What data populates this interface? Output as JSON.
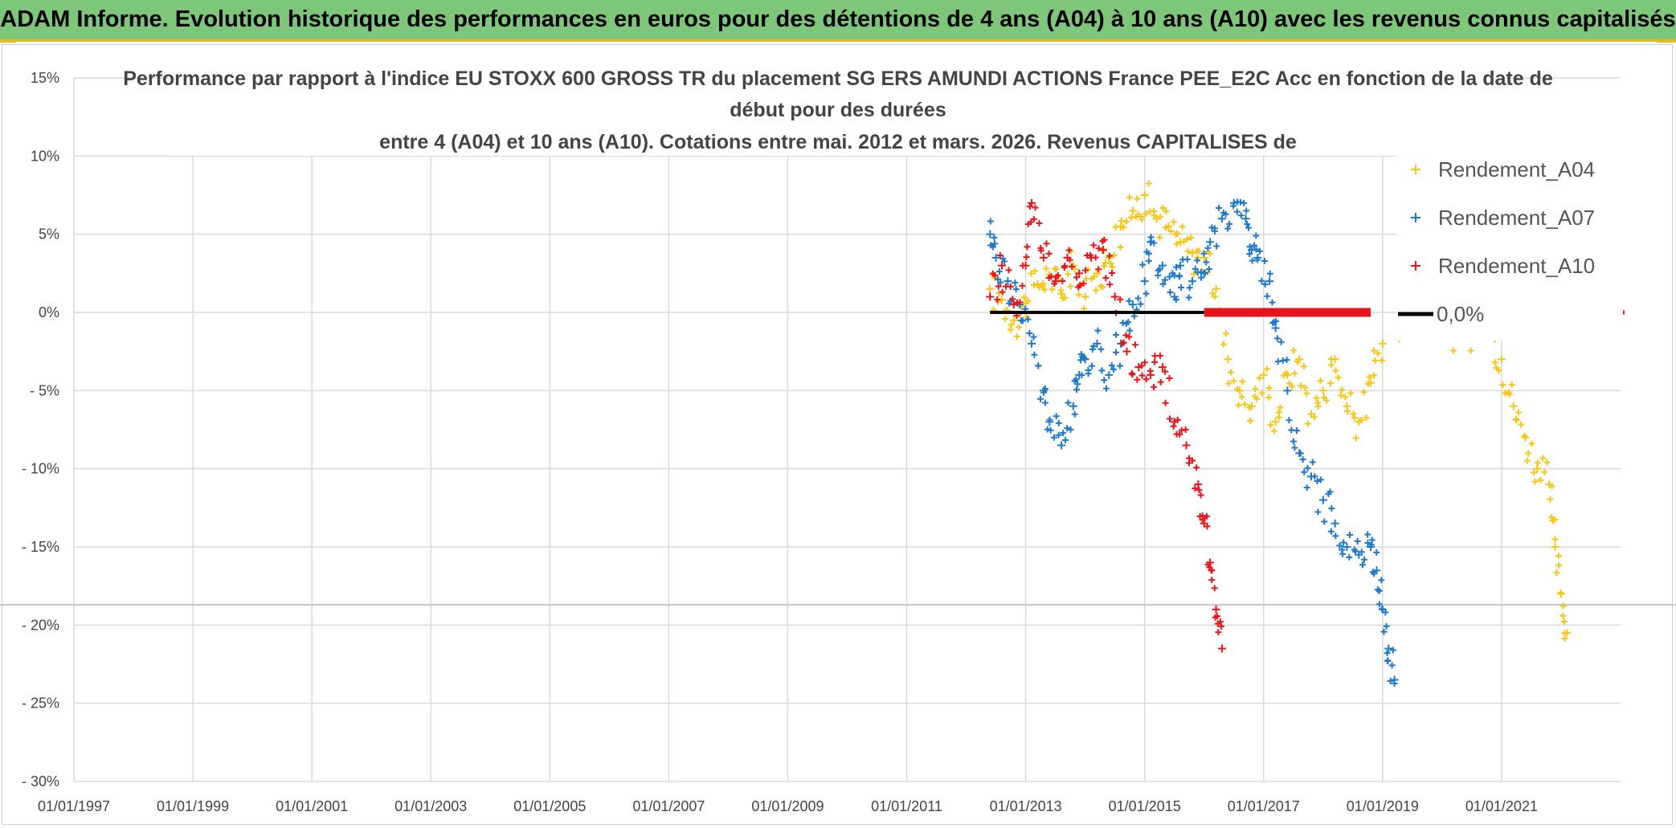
{
  "banner": {
    "title": "ADAM Informe. Evolution historique des performances en euros pour des détentions de 4 ans (A04) à 10 ans (A10) avec les revenus connus capitalisés"
  },
  "colors": {
    "A04": "#f5c518",
    "A07": "#1f78c8",
    "A10": "#e8141b",
    "zero": "#000000",
    "banner": "#7dc67a",
    "accent": "#e8b923"
  },
  "chart_data": {
    "type": "scatter",
    "title_lines": [
      "Performance par rapport à l'indice EU STOXX 600 GROSS TR  du placement SG ERS AMUNDI ACTIONS France PEE_E2C Acc en fonction de la date de",
      "début pour des durées",
      "entre 4 (A04) et 10 ans (A10). Cotations entre mai. 2012 et mars. 2026. Revenus CAPITALISES de"
    ],
    "xlabel": "",
    "ylabel": "",
    "x_range": [
      "1997-01-01",
      "2023-01-01"
    ],
    "x_tick_labels": [
      "01/01/1997",
      "01/01/1999",
      "01/01/2001",
      "01/01/2003",
      "01/01/2005",
      "01/01/2007",
      "01/01/2009",
      "01/01/2011",
      "01/01/2013",
      "01/01/2015",
      "01/01/2017",
      "01/01/2019",
      "01/01/2021"
    ],
    "ylim": [
      -30,
      15
    ],
    "y_ticks": [
      15,
      10,
      5,
      0,
      -5,
      -10,
      -15,
      -20,
      -25,
      -30
    ],
    "y_tick_labels": [
      "15%",
      "10%",
      "5%",
      "0%",
      "- 5%",
      "- 10%",
      "- 15%",
      "- 20%",
      "- 25%",
      "- 30%"
    ],
    "grid": true,
    "legend_position": "top-right",
    "series": [
      {
        "name": "Rendement_A04",
        "marker": "+",
        "points": [
          [
            2012.4,
            1.5
          ],
          [
            2012.6,
            0.8
          ],
          [
            2012.8,
            -0.5
          ],
          [
            2013.0,
            0.6
          ],
          [
            2013.2,
            1.8
          ],
          [
            2013.4,
            2.4
          ],
          [
            2013.6,
            1.2
          ],
          [
            2013.8,
            3.0
          ],
          [
            2014.0,
            1.0
          ],
          [
            2014.2,
            2.5
          ],
          [
            2014.4,
            3.5
          ],
          [
            2014.6,
            5.5
          ],
          [
            2014.8,
            6.5
          ],
          [
            2015.0,
            7.5
          ],
          [
            2015.2,
            6.0
          ],
          [
            2015.4,
            5.5
          ],
          [
            2015.6,
            4.5
          ],
          [
            2015.8,
            3.8
          ],
          [
            2016.0,
            3.5
          ],
          [
            2016.2,
            1.5
          ],
          [
            2016.4,
            -3.0
          ],
          [
            2016.6,
            -5.0
          ],
          [
            2016.8,
            -6.0
          ],
          [
            2017.0,
            -4.0
          ],
          [
            2017.2,
            -7.0
          ],
          [
            2017.4,
            -4.0
          ],
          [
            2017.6,
            -3.0
          ],
          [
            2017.8,
            -6.5
          ],
          [
            2018.0,
            -5.0
          ],
          [
            2018.2,
            -3.0
          ],
          [
            2018.4,
            -6.0
          ],
          [
            2018.6,
            -7.0
          ],
          [
            2018.8,
            -4.5
          ],
          [
            2019.0,
            -2.0
          ],
          [
            2020.8,
            -1.0
          ],
          [
            2021.0,
            -3.0
          ],
          [
            2021.2,
            -6.0
          ],
          [
            2021.4,
            -8.0
          ],
          [
            2021.6,
            -10.0
          ],
          [
            2021.8,
            -11.0
          ],
          [
            2021.9,
            -15.0
          ],
          [
            2022.0,
            -18.0
          ],
          [
            2022.1,
            -20.5
          ]
        ]
      },
      {
        "name": "Rendement_A07",
        "marker": "+",
        "points": [
          [
            2012.4,
            5.0
          ],
          [
            2012.5,
            3.5
          ],
          [
            2012.7,
            2.0
          ],
          [
            2012.9,
            0.5
          ],
          [
            2013.1,
            -2.0
          ],
          [
            2013.3,
            -5.0
          ],
          [
            2013.4,
            -7.0
          ],
          [
            2013.6,
            -8.5
          ],
          [
            2013.8,
            -6.0
          ],
          [
            2013.9,
            -4.0
          ],
          [
            2014.0,
            -3.0
          ],
          [
            2014.2,
            -2.0
          ],
          [
            2014.4,
            -4.0
          ],
          [
            2014.6,
            -2.0
          ],
          [
            2014.8,
            0.5
          ],
          [
            2015.0,
            2.0
          ],
          [
            2015.1,
            4.5
          ],
          [
            2015.3,
            3.0
          ],
          [
            2015.5,
            1.0
          ],
          [
            2015.6,
            3.0
          ],
          [
            2015.8,
            2.0
          ],
          [
            2016.0,
            2.5
          ],
          [
            2016.1,
            4.5
          ],
          [
            2016.3,
            6.0
          ],
          [
            2016.5,
            7.0
          ],
          [
            2016.7,
            6.0
          ],
          [
            2016.8,
            4.0
          ],
          [
            2016.9,
            3.5
          ],
          [
            2017.1,
            2.0
          ],
          [
            2017.2,
            -1.0
          ],
          [
            2017.4,
            -5.0
          ],
          [
            2017.6,
            -9.0
          ],
          [
            2017.8,
            -10.5
          ],
          [
            2018.0,
            -12.0
          ],
          [
            2018.2,
            -13.5
          ],
          [
            2018.4,
            -15.0
          ],
          [
            2018.6,
            -15.5
          ],
          [
            2018.8,
            -15.0
          ],
          [
            2018.9,
            -16.5
          ],
          [
            2019.0,
            -19.0
          ],
          [
            2019.1,
            -21.5
          ],
          [
            2019.2,
            -23.5
          ]
        ]
      },
      {
        "name": "Rendement_A10",
        "marker": "+",
        "points": [
          [
            2012.4,
            1.0
          ],
          [
            2012.6,
            3.0
          ],
          [
            2012.8,
            0.5
          ],
          [
            2013.0,
            3.0
          ],
          [
            2013.1,
            7.0
          ],
          [
            2013.3,
            3.5
          ],
          [
            2013.5,
            2.0
          ],
          [
            2013.7,
            3.5
          ],
          [
            2013.9,
            2.5
          ],
          [
            2014.1,
            3.5
          ],
          [
            2014.3,
            4.0
          ],
          [
            2014.5,
            1.0
          ],
          [
            2014.7,
            -2.5
          ],
          [
            2014.9,
            -3.5
          ],
          [
            2015.1,
            -4.0
          ],
          [
            2015.3,
            -3.5
          ],
          [
            2015.5,
            -7.0
          ],
          [
            2015.7,
            -8.5
          ],
          [
            2015.9,
            -11.0
          ],
          [
            2016.0,
            -13.5
          ],
          [
            2016.1,
            -16.0
          ],
          [
            2016.2,
            -19.0
          ],
          [
            2016.3,
            -21.5
          ]
        ]
      },
      {
        "name": "0,0%",
        "type": "line",
        "points": [
          [
            2012.4,
            0.0
          ],
          [
            2016.0,
            0.0
          ]
        ]
      }
    ],
    "flat_segment_A10": [
      [
        2016.0,
        0.0
      ],
      [
        2018.8,
        0.0
      ]
    ],
    "legend": [
      "Rendement_A04",
      "Rendement_A07",
      "Rendement_A10",
      "0,0%"
    ]
  }
}
